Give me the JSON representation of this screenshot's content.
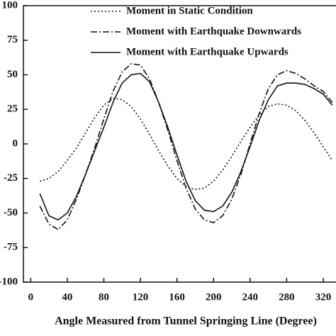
{
  "chart_data": {
    "type": "line",
    "x_label": "Angle Measured from Tunnel Springing Line (Degree)",
    "x": [
      10,
      20,
      30,
      40,
      50,
      60,
      70,
      80,
      90,
      100,
      110,
      120,
      130,
      140,
      150,
      160,
      170,
      180,
      190,
      200,
      210,
      220,
      230,
      240,
      250,
      260,
      270,
      280,
      290,
      300,
      310,
      320,
      330
    ],
    "series": [
      {
        "name": "Moment in Static Condition",
        "color": "#111111",
        "dash": "2,3",
        "values": [
          -27,
          -25,
          -20,
          -12,
          -3,
          8,
          19,
          28,
          33,
          32,
          27,
          18,
          7,
          -5,
          -16,
          -25,
          -31,
          -33,
          -32,
          -27,
          -19,
          -9,
          2,
          12,
          21,
          27,
          29,
          28,
          24,
          17,
          8,
          -2,
          -12
        ]
      },
      {
        "name": "Moment with Earthquake Downwards",
        "color": "#111111",
        "dash": "9,3,2,3",
        "values": [
          -45,
          -58,
          -62,
          -55,
          -40,
          -22,
          -3,
          18,
          38,
          52,
          58,
          57,
          47,
          30,
          10,
          -12,
          -32,
          -47,
          -55,
          -57,
          -52,
          -40,
          -22,
          0,
          22,
          40,
          50,
          53,
          51,
          47,
          42,
          38,
          30
        ]
      },
      {
        "name": "Moment with Earthquake Upwards",
        "color": "#111111",
        "dash": "",
        "values": [
          -36,
          -52,
          -55,
          -50,
          -38,
          -22,
          -5,
          12,
          30,
          44,
          50,
          51,
          45,
          30,
          12,
          -8,
          -27,
          -41,
          -48,
          -49,
          -45,
          -35,
          -20,
          -2,
          17,
          32,
          42,
          44,
          44,
          43,
          40,
          36,
          28
        ]
      }
    ],
    "xlim": [
      -8,
      334
    ],
    "xticks": [
      0,
      40,
      80,
      120,
      160,
      200,
      240,
      280,
      320
    ],
    "ylim": [
      -100,
      100
    ],
    "yticks": [
      -100,
      -75,
      -50,
      -25,
      0,
      25,
      50,
      75,
      100
    ]
  }
}
